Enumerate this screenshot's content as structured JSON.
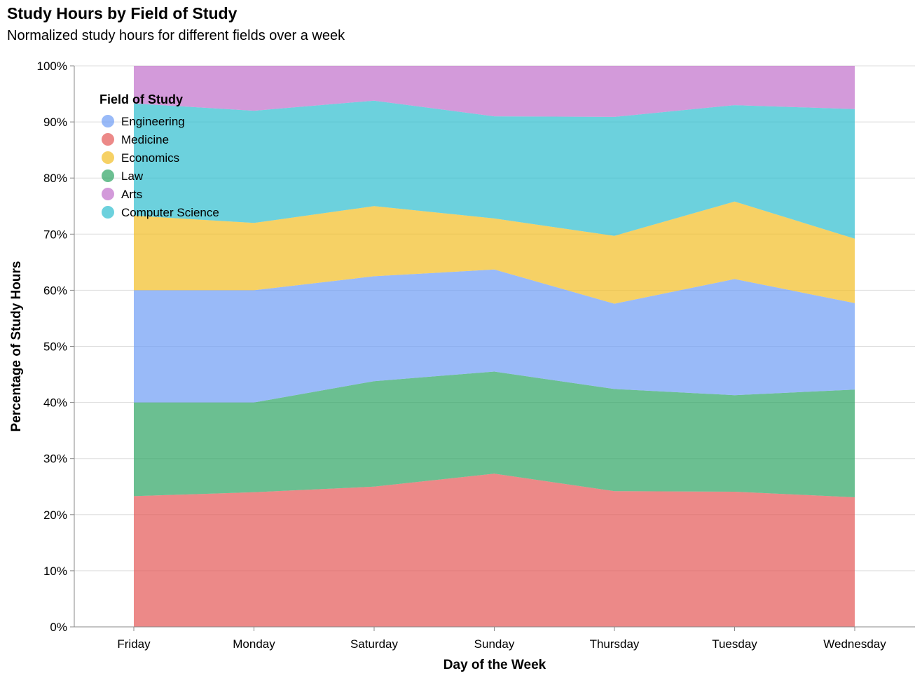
{
  "title": "Study Hours by Field of Study",
  "subtitle": "Normalized study hours for different fields over a week",
  "chart_data": {
    "type": "area",
    "stacked": "normalize",
    "title": "Study Hours by Field of Study",
    "subtitle": "Normalized study hours for different fields over a week",
    "xlabel": "Day of the Week",
    "ylabel": "Percentage of Study Hours",
    "categories": [
      "Friday",
      "Monday",
      "Saturday",
      "Sunday",
      "Thursday",
      "Tuesday",
      "Wednesday"
    ],
    "y_ticks": [
      "0%",
      "10%",
      "20%",
      "30%",
      "40%",
      "50%",
      "60%",
      "70%",
      "80%",
      "90%",
      "100%"
    ],
    "ylim": [
      0,
      100
    ],
    "grid": true,
    "legend_title": "Field of Study",
    "legend_position": "top-left",
    "legend_order": [
      "Engineering",
      "Medicine",
      "Economics",
      "Law",
      "Arts",
      "Computer Science"
    ],
    "stack_order_bottom_to_top": [
      "Medicine",
      "Law",
      "Engineering",
      "Economics",
      "Computer Science",
      "Arts"
    ],
    "series": [
      {
        "name": "Medicine",
        "color": "#e45756",
        "values": [
          23.3,
          24.0,
          25.0,
          27.3,
          24.2,
          24.1,
          23.1
        ]
      },
      {
        "name": "Law",
        "color": "#2ca462",
        "values": [
          16.7,
          16.0,
          18.8,
          18.2,
          18.2,
          17.2,
          19.2
        ]
      },
      {
        "name": "Engineering",
        "color": "#6e9cf5",
        "values": [
          20.0,
          20.0,
          18.7,
          18.2,
          15.2,
          20.7,
          15.4
        ]
      },
      {
        "name": "Economics",
        "color": "#f2bd24",
        "values": [
          13.3,
          12.0,
          12.5,
          9.1,
          12.1,
          13.8,
          11.5
        ]
      },
      {
        "name": "Computer Science",
        "color": "#2ebdcf",
        "values": [
          20.0,
          20.0,
          18.8,
          18.2,
          21.2,
          17.2,
          23.1
        ]
      },
      {
        "name": "Arts",
        "color": "#c06fcb",
        "values": [
          6.7,
          8.0,
          6.2,
          9.0,
          9.1,
          7.0,
          7.7
        ]
      }
    ]
  }
}
